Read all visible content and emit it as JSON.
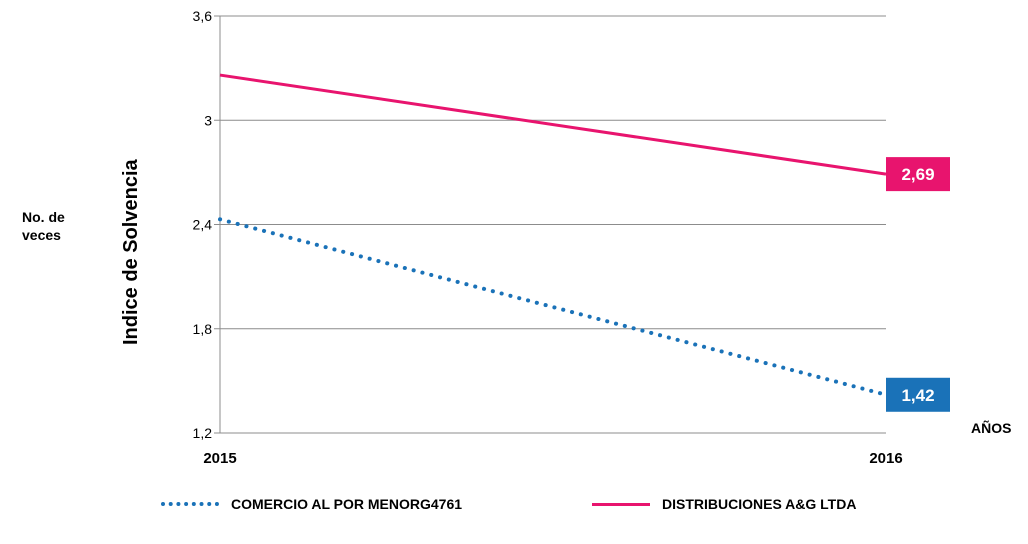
{
  "chart_data": {
    "type": "line",
    "title": "",
    "ylabel": "Indice de Solvencia",
    "ylabel_side": [
      "No. de",
      "veces"
    ],
    "xlabel": "AÑOS",
    "categories": [
      "2015",
      "2016"
    ],
    "ylim": [
      1.2,
      3.6
    ],
    "yticks": [
      "1,2",
      "1,8",
      "2,4",
      "3",
      "3,6"
    ],
    "ytick_values": [
      1.2,
      1.8,
      2.4,
      3.0,
      3.6
    ],
    "grid": true,
    "legend_position": "bottom",
    "series": [
      {
        "name": "COMERCIO AL POR MENORG4761",
        "values": [
          2.43,
          1.42
        ],
        "style": "dotted",
        "color": "#1a72b8",
        "end_label": "1,42"
      },
      {
        "name": "DISTRIBUCIONES A&G LTDA",
        "values": [
          3.26,
          2.69
        ],
        "style": "solid",
        "color": "#e8146e",
        "end_label": "2,69"
      }
    ]
  }
}
